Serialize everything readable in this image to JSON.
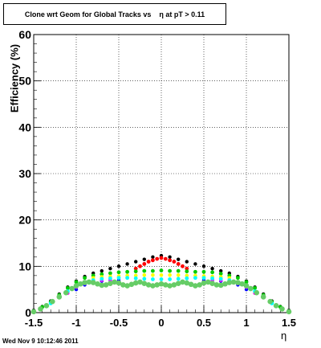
{
  "title_text": "Clone wrt Geom for Global Tracks vs    η at pT > 0.11",
  "timestamp": "Wed Nov  9 10:12:46 2011",
  "chart_data": {
    "type": "scatter",
    "title": "Clone wrt Geom for Global Tracks vs    η at pT > 0.11",
    "xlabel": "η",
    "ylabel": "Efficiency (%)",
    "xlim": [
      -1.5,
      1.5
    ],
    "ylim": [
      0,
      60
    ],
    "x_ticks": [
      "-1.5",
      "-1",
      "-0.5",
      "0",
      "0.5",
      "1",
      "1.5"
    ],
    "y_ticks": [
      "0",
      "10",
      "20",
      "30",
      "40",
      "50",
      "60"
    ],
    "grid": true,
    "series": [
      {
        "color": "#000000",
        "marker_radius": 2.2,
        "points": [
          [
            -1.5,
            0.5
          ],
          [
            -1.4,
            1.3
          ],
          [
            -1.3,
            2.5
          ],
          [
            -1.2,
            4
          ],
          [
            -1.1,
            5.5
          ],
          [
            -1.0,
            6.8
          ],
          [
            -0.9,
            7.8
          ],
          [
            -0.8,
            8.5
          ],
          [
            -0.7,
            9
          ],
          [
            -0.6,
            9.5
          ],
          [
            -0.5,
            10
          ],
          [
            -0.4,
            10.5
          ],
          [
            -0.3,
            11
          ],
          [
            -0.2,
            11.5
          ],
          [
            -0.1,
            12
          ],
          [
            0.0,
            12.3
          ],
          [
            0.1,
            12
          ],
          [
            0.2,
            11.5
          ],
          [
            0.3,
            11
          ],
          [
            0.4,
            10.5
          ],
          [
            0.5,
            10
          ],
          [
            0.6,
            9.5
          ],
          [
            0.7,
            9
          ],
          [
            0.8,
            8.5
          ],
          [
            0.9,
            7.8
          ],
          [
            1.0,
            6.8
          ],
          [
            1.1,
            5.5
          ],
          [
            1.2,
            4
          ],
          [
            1.3,
            2.5
          ],
          [
            1.4,
            1.3
          ],
          [
            1.5,
            0.5
          ]
        ]
      },
      {
        "color": "#ff0000",
        "marker_radius": 2.4,
        "points": [
          [
            -0.3,
            9.5
          ],
          [
            -0.25,
            10
          ],
          [
            -0.2,
            10.5
          ],
          [
            -0.15,
            11
          ],
          [
            -0.1,
            11.3
          ],
          [
            -0.05,
            11.6
          ],
          [
            0.0,
            11.8
          ],
          [
            0.05,
            11.6
          ],
          [
            0.1,
            11.3
          ],
          [
            0.15,
            11
          ],
          [
            0.2,
            10.5
          ],
          [
            0.25,
            10
          ],
          [
            0.3,
            9.5
          ]
        ]
      },
      {
        "color": "#00cc00",
        "marker_radius": 2.4,
        "points": [
          [
            -1.5,
            0.3
          ],
          [
            -1.4,
            1.2
          ],
          [
            -1.3,
            2.3
          ],
          [
            -1.2,
            3.8
          ],
          [
            -1.1,
            5.3
          ],
          [
            -1.0,
            6.6
          ],
          [
            -0.9,
            7.5
          ],
          [
            -0.8,
            8
          ],
          [
            -0.7,
            8.3
          ],
          [
            -0.6,
            8.5
          ],
          [
            -0.5,
            8.7
          ],
          [
            -0.4,
            8.8
          ],
          [
            -0.3,
            8.9
          ],
          [
            -0.2,
            9
          ],
          [
            -0.1,
            9
          ],
          [
            0.0,
            9.1
          ],
          [
            0.1,
            9
          ],
          [
            0.2,
            9
          ],
          [
            0.3,
            8.9
          ],
          [
            0.4,
            8.8
          ],
          [
            0.5,
            8.8
          ],
          [
            0.6,
            8.7
          ],
          [
            0.7,
            8.4
          ],
          [
            0.8,
            8
          ],
          [
            0.9,
            7.5
          ],
          [
            1.0,
            6.6
          ],
          [
            1.1,
            5.3
          ],
          [
            1.2,
            3.8
          ],
          [
            1.3,
            2.3
          ],
          [
            1.4,
            1.2
          ],
          [
            1.5,
            0.3
          ]
        ]
      },
      {
        "color": "#ffff00",
        "marker_radius": 2.3,
        "points": [
          [
            -0.8,
            7.5
          ],
          [
            -0.7,
            7.7
          ],
          [
            -0.6,
            7.8
          ],
          [
            -0.5,
            7.9
          ],
          [
            -0.4,
            8
          ],
          [
            -0.3,
            8
          ],
          [
            -0.2,
            8.1
          ],
          [
            -0.1,
            8.1
          ],
          [
            0.0,
            8.1
          ],
          [
            0.1,
            8.1
          ],
          [
            0.2,
            8.1
          ],
          [
            0.3,
            8
          ],
          [
            0.4,
            8
          ],
          [
            0.5,
            7.9
          ],
          [
            0.6,
            7.8
          ],
          [
            0.7,
            7.7
          ],
          [
            0.8,
            7.5
          ]
        ]
      },
      {
        "color": "#0000ff",
        "marker_radius": 2.2,
        "points": [
          [
            -1.0,
            5
          ],
          [
            -0.9,
            6
          ],
          [
            -0.8,
            6.5
          ],
          [
            -0.7,
            6.8
          ],
          [
            -0.6,
            7
          ],
          [
            -0.5,
            7
          ],
          [
            0.5,
            7
          ],
          [
            0.6,
            7
          ],
          [
            0.7,
            6.8
          ],
          [
            0.8,
            6.5
          ],
          [
            0.9,
            6
          ],
          [
            1.0,
            5
          ]
        ]
      },
      {
        "color": "#ff00ff",
        "marker_radius": 2.2,
        "points": [
          [
            -1.1,
            4.2
          ],
          [
            -1.0,
            5.5
          ],
          [
            -0.9,
            6.3
          ],
          [
            -0.8,
            6.8
          ],
          [
            -0.7,
            7
          ],
          [
            -0.6,
            7.1
          ],
          [
            0.6,
            7.1
          ],
          [
            0.7,
            7
          ],
          [
            0.8,
            6.8
          ],
          [
            0.9,
            6.3
          ],
          [
            1.0,
            5.5
          ],
          [
            1.1,
            4.2
          ]
        ]
      },
      {
        "color": "#00ffff",
        "marker_radius": 2.4,
        "points": [
          [
            -1.3,
            2
          ],
          [
            -1.2,
            3.3
          ],
          [
            -1.1,
            4.6
          ],
          [
            -1.0,
            5.8
          ],
          [
            -0.9,
            6.5
          ],
          [
            -0.8,
            7
          ],
          [
            -0.7,
            7.3
          ],
          [
            -0.6,
            7.4
          ],
          [
            -0.5,
            7.5
          ],
          [
            -0.4,
            7.5
          ],
          [
            -0.3,
            7.4
          ],
          [
            -0.2,
            7.3
          ],
          [
            -0.1,
            7.2
          ],
          [
            0.0,
            7.2
          ],
          [
            0.1,
            7.2
          ],
          [
            0.2,
            7.3
          ],
          [
            0.3,
            7.4
          ],
          [
            0.4,
            7.5
          ],
          [
            0.5,
            7.5
          ],
          [
            0.6,
            7.4
          ],
          [
            0.7,
            7.3
          ],
          [
            0.8,
            7
          ],
          [
            0.9,
            6.5
          ],
          [
            1.0,
            5.8
          ],
          [
            1.1,
            4.6
          ],
          [
            1.2,
            3.3
          ],
          [
            1.3,
            2
          ]
        ]
      },
      {
        "color": "#66cc66",
        "marker_radius": 3.3,
        "points": [
          [
            -1.5,
            0.2
          ],
          [
            -1.42,
            0.8
          ],
          [
            -1.35,
            1.5
          ],
          [
            -1.28,
            2.4
          ],
          [
            -1.2,
            3.4
          ],
          [
            -1.12,
            4.3
          ],
          [
            -1.05,
            5.2
          ],
          [
            -1.0,
            5.8
          ],
          [
            -0.95,
            6.2
          ],
          [
            -0.9,
            6.5
          ],
          [
            -0.85,
            6.6
          ],
          [
            -0.8,
            6.5
          ],
          [
            -0.75,
            6.2
          ],
          [
            -0.7,
            5.9
          ],
          [
            -0.65,
            6
          ],
          [
            -0.6,
            6.3
          ],
          [
            -0.55,
            6.6
          ],
          [
            -0.5,
            6.4
          ],
          [
            -0.45,
            6
          ],
          [
            -0.4,
            5.8
          ],
          [
            -0.35,
            6.1
          ],
          [
            -0.3,
            6.4
          ],
          [
            -0.25,
            6.6
          ],
          [
            -0.2,
            6.3
          ],
          [
            -0.15,
            6
          ],
          [
            -0.1,
            5.8
          ],
          [
            -0.05,
            6
          ],
          [
            0.0,
            6.2
          ],
          [
            0.05,
            6
          ],
          [
            0.1,
            5.8
          ],
          [
            0.15,
            6
          ],
          [
            0.2,
            6.3
          ],
          [
            0.25,
            6.6
          ],
          [
            0.3,
            6.4
          ],
          [
            0.35,
            6.1
          ],
          [
            0.4,
            5.8
          ],
          [
            0.45,
            6
          ],
          [
            0.5,
            6.4
          ],
          [
            0.55,
            6.6
          ],
          [
            0.6,
            6.3
          ],
          [
            0.65,
            6
          ],
          [
            0.7,
            5.9
          ],
          [
            0.75,
            6.2
          ],
          [
            0.8,
            6.5
          ],
          [
            0.85,
            6.6
          ],
          [
            0.9,
            6.5
          ],
          [
            0.95,
            6.2
          ],
          [
            1.0,
            5.8
          ],
          [
            1.05,
            5.2
          ],
          [
            1.12,
            4.3
          ],
          [
            1.2,
            3.4
          ],
          [
            1.28,
            2.4
          ],
          [
            1.35,
            1.5
          ],
          [
            1.42,
            0.8
          ],
          [
            1.5,
            0.2
          ]
        ]
      }
    ]
  }
}
